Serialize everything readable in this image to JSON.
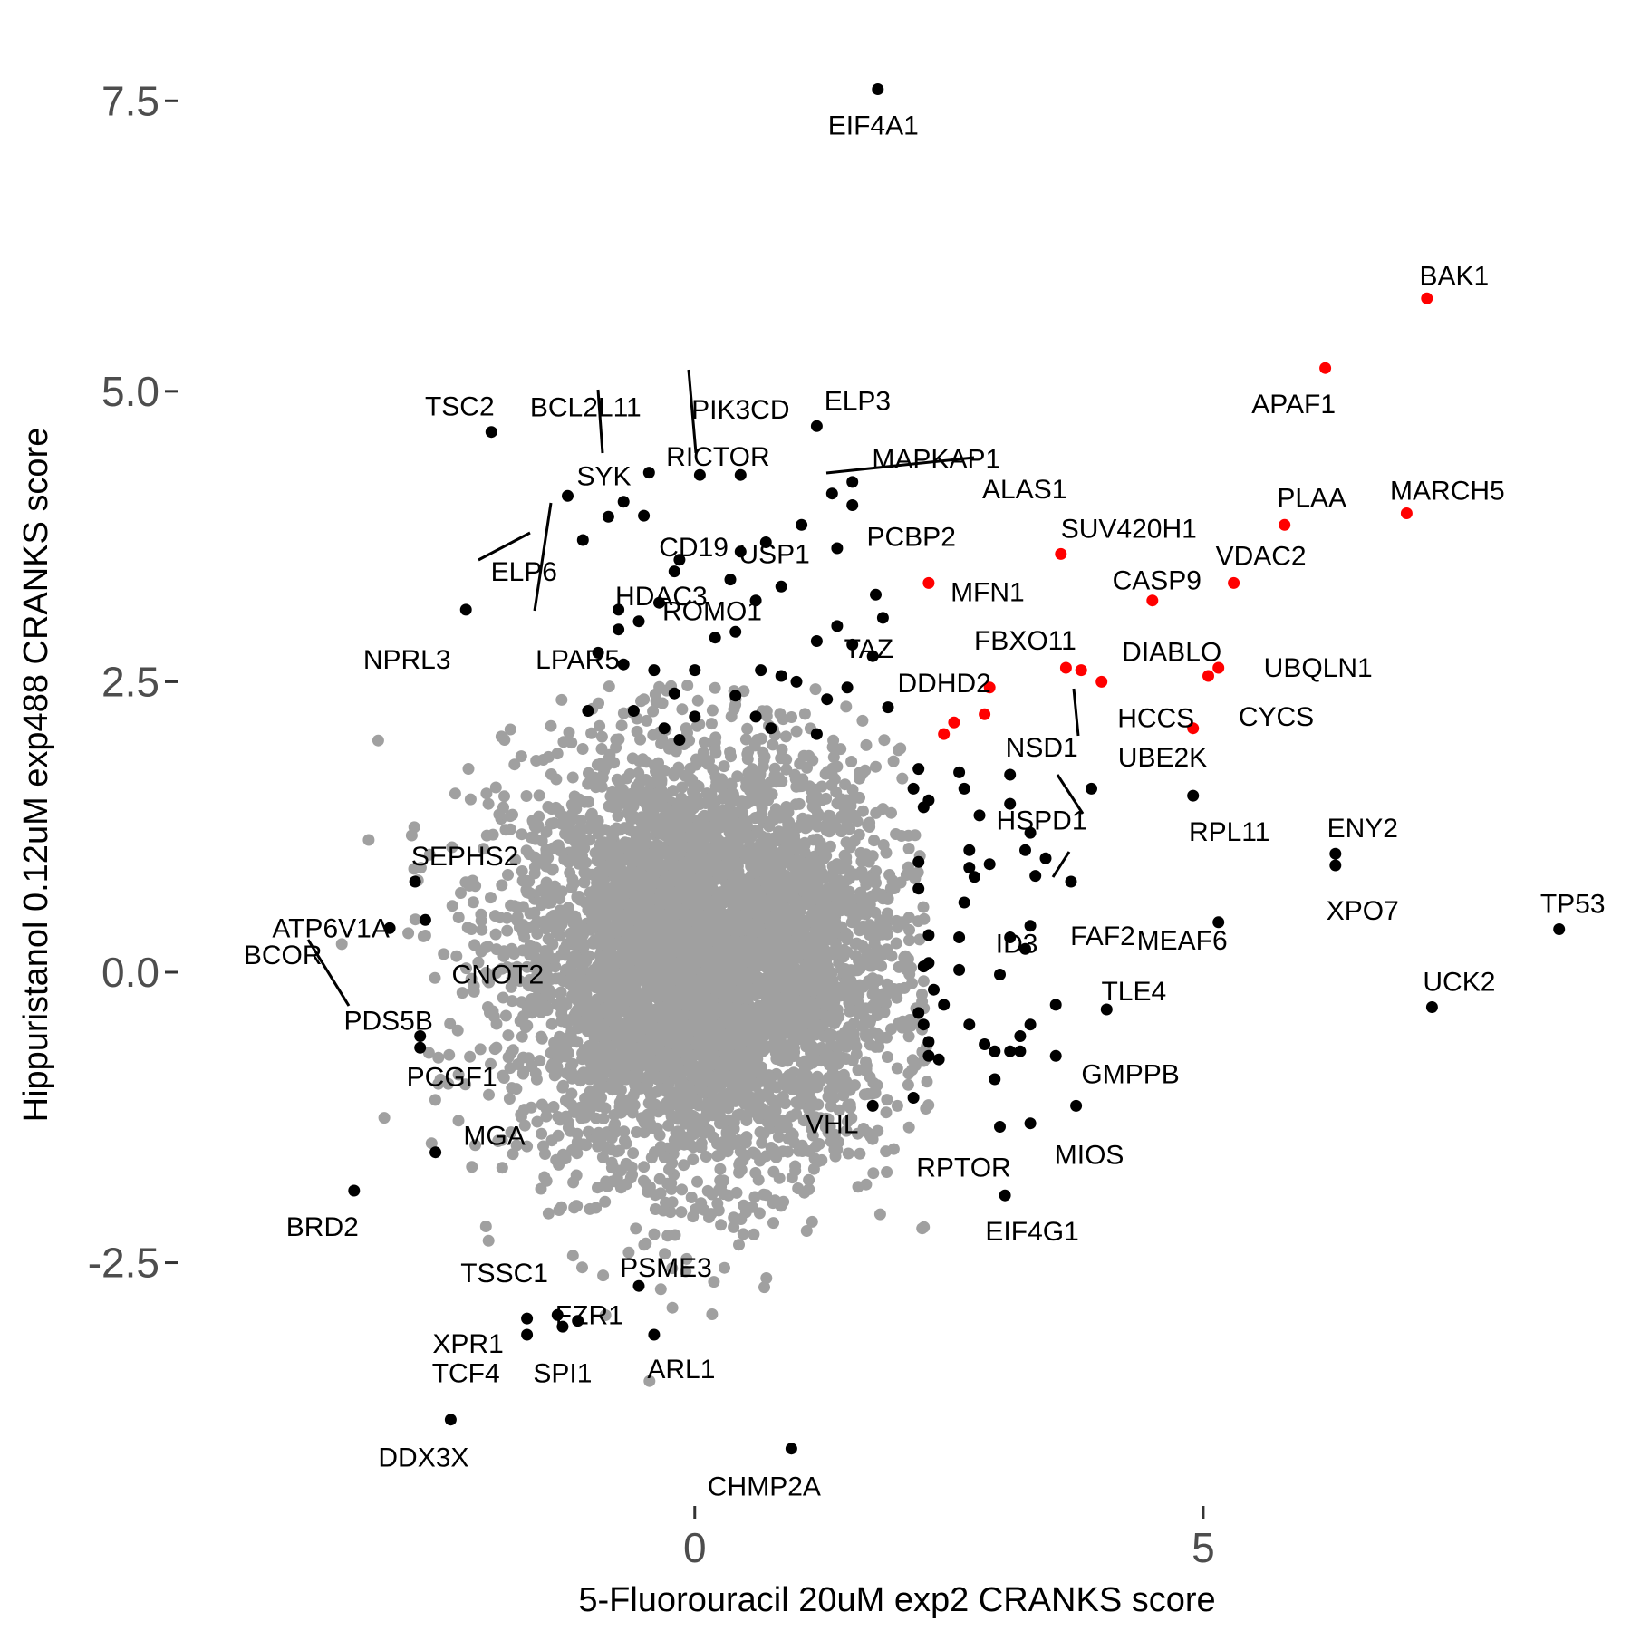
{
  "chart_data": {
    "type": "scatter",
    "title": "",
    "xlabel": "5-Fluorouracil 20uM exp2 CRANKS score",
    "ylabel": "Hippuristanol 0.12uM exp488 CRANKS score",
    "xlim": [
      -5.05,
      8.85
    ],
    "ylim": [
      -4.5,
      7.9
    ],
    "x_ticks": [
      0,
      5
    ],
    "x_tick_labels": [
      "0",
      "5"
    ],
    "y_ticks": [
      -2.5,
      0,
      2.5,
      5,
      7.5
    ],
    "y_tick_labels": [
      "-2.5",
      "0.0",
      "2.5",
      "5.0",
      "7.5"
    ],
    "grid": false,
    "legend": "none",
    "colors": {
      "background": "#ffffff",
      "hit": "#000000",
      "highlight": "#ff0000",
      "background_genes": "#a0a0a0"
    },
    "background_cloud": {
      "color": "#a0a0a0",
      "x_mean": 0.1,
      "y_mean": 0.1,
      "x_sd": 0.95,
      "y_sd": 0.9
    },
    "highlighted": [
      {
        "label": "BAK1",
        "x": 7.2,
        "y": 5.8
      },
      {
        "label": "APAF1",
        "x": 6.2,
        "y": 5.2
      },
      {
        "label": "MARCH5",
        "x": 7.0,
        "y": 3.95
      },
      {
        "label": "PLAA",
        "x": 5.8,
        "y": 3.85
      },
      {
        "label": "VDAC2",
        "x": 5.3,
        "y": 3.35
      },
      {
        "label": "CASP9",
        "x": 4.5,
        "y": 3.2
      },
      {
        "label": "SUV420H1",
        "x": 3.6,
        "y": 3.6
      },
      {
        "label": "MFN1",
        "x": 2.3,
        "y": 3.35
      },
      {
        "label": "DIABLO",
        "x": 3.8,
        "y": 2.6
      },
      {
        "label": "FBXO11",
        "x": 3.65,
        "y": 2.62
      },
      {
        "label": "HCCS",
        "x": 4.0,
        "y": 2.5
      },
      {
        "label": "UBQLN1",
        "x": 5.15,
        "y": 2.62
      },
      {
        "label": "CYCS",
        "x": 5.05,
        "y": 2.55
      },
      {
        "label": "",
        "x": 4.9,
        "y": 2.1
      },
      {
        "label": "DDHD2",
        "x": 2.9,
        "y": 2.45
      },
      {
        "label": "",
        "x": 2.85,
        "y": 2.22
      },
      {
        "label": "",
        "x": 2.55,
        "y": 2.15
      },
      {
        "label": "",
        "x": 2.45,
        "y": 2.05
      }
    ],
    "hits": [
      {
        "label": "EIF4A1",
        "x": 1.8,
        "y": 7.6
      },
      {
        "label": "TSC2",
        "x": -2.0,
        "y": 4.65
      },
      {
        "label": "ELP3",
        "x": 1.2,
        "y": 4.7
      },
      {
        "label": "BCL2L11",
        "x": -0.45,
        "y": 4.3
      },
      {
        "label": "PIK3CD",
        "x": 0.45,
        "y": 4.28
      },
      {
        "label": "RICTOR",
        "x": 0.05,
        "y": 4.28
      },
      {
        "label": "ALAS1",
        "x": 1.55,
        "y": 4.22
      },
      {
        "label": "MAPKAP1",
        "x": 1.35,
        "y": 4.12
      },
      {
        "label": "SYK",
        "x": -1.25,
        "y": 4.1
      },
      {
        "label": "PCBP2",
        "x": 1.55,
        "y": 4.02
      },
      {
        "label": "",
        "x": -0.7,
        "y": 4.05
      },
      {
        "label": "CD19",
        "x": -0.5,
        "y": 3.93
      },
      {
        "label": "",
        "x": -0.85,
        "y": 3.92
      },
      {
        "label": "USP1",
        "x": 1.05,
        "y": 3.85
      },
      {
        "label": "ELP6",
        "x": -1.1,
        "y": 3.72
      },
      {
        "label": "",
        "x": 0.7,
        "y": 3.7
      },
      {
        "label": "",
        "x": 1.4,
        "y": 3.65
      },
      {
        "label": "",
        "x": 0.45,
        "y": 3.62
      },
      {
        "label": "HDAC3",
        "x": -0.15,
        "y": 3.55
      },
      {
        "label": "",
        "x": -0.2,
        "y": 3.45
      },
      {
        "label": "ROMO1",
        "x": 0.35,
        "y": 3.38
      },
      {
        "label": "",
        "x": 0.85,
        "y": 3.32
      },
      {
        "label": "",
        "x": 1.78,
        "y": 3.25
      },
      {
        "label": "",
        "x": 0.6,
        "y": 3.2
      },
      {
        "label": "",
        "x": -0.35,
        "y": 3.18
      },
      {
        "label": "NPRL3",
        "x": -2.25,
        "y": 3.12
      },
      {
        "label": "LPAR5",
        "x": -0.75,
        "y": 3.12
      },
      {
        "label": "",
        "x": 1.85,
        "y": 3.05
      },
      {
        "label": "",
        "x": -0.55,
        "y": 3.02
      },
      {
        "label": "",
        "x": -0.75,
        "y": 2.95
      },
      {
        "label": "TAZ",
        "x": 1.4,
        "y": 2.98
      },
      {
        "label": "",
        "x": 0.4,
        "y": 2.93
      },
      {
        "label": "",
        "x": 0.2,
        "y": 2.88
      },
      {
        "label": "",
        "x": 1.2,
        "y": 2.85
      },
      {
        "label": "",
        "x": 1.55,
        "y": 2.82
      },
      {
        "label": "",
        "x": -0.95,
        "y": 2.75
      },
      {
        "label": "",
        "x": 1.75,
        "y": 2.72
      },
      {
        "label": "",
        "x": -0.7,
        "y": 2.65
      },
      {
        "label": "",
        "x": -0.4,
        "y": 2.6
      },
      {
        "label": "",
        "x": 0.0,
        "y": 2.6
      },
      {
        "label": "",
        "x": 0.65,
        "y": 2.6
      },
      {
        "label": "",
        "x": 0.85,
        "y": 2.55
      },
      {
        "label": "",
        "x": 1.0,
        "y": 2.5
      },
      {
        "label": "",
        "x": 1.5,
        "y": 2.45
      },
      {
        "label": "",
        "x": -0.2,
        "y": 2.4
      },
      {
        "label": "",
        "x": 0.4,
        "y": 2.38
      },
      {
        "label": "",
        "x": 1.3,
        "y": 2.35
      },
      {
        "label": "",
        "x": -1.05,
        "y": 2.25
      },
      {
        "label": "",
        "x": -0.6,
        "y": 2.25
      },
      {
        "label": "",
        "x": 0.0,
        "y": 2.2
      },
      {
        "label": "",
        "x": 0.6,
        "y": 2.2
      },
      {
        "label": "",
        "x": 1.9,
        "y": 2.28
      },
      {
        "label": "",
        "x": -0.3,
        "y": 2.1
      },
      {
        "label": "",
        "x": 0.75,
        "y": 2.1
      },
      {
        "label": "",
        "x": 1.2,
        "y": 2.05
      },
      {
        "label": "",
        "x": -0.15,
        "y": 2.0
      },
      {
        "label": "NSD1",
        "x": 3.1,
        "y": 1.7
      },
      {
        "label": "",
        "x": 2.2,
        "y": 1.75
      },
      {
        "label": "",
        "x": 2.6,
        "y": 1.72
      },
      {
        "label": "",
        "x": 2.15,
        "y": 1.58
      },
      {
        "label": "",
        "x": 2.65,
        "y": 1.58
      },
      {
        "label": "HSPD1",
        "x": 3.9,
        "y": 1.58
      },
      {
        "label": "RPL11",
        "x": 4.9,
        "y": 1.52
      },
      {
        "label": "",
        "x": 2.3,
        "y": 1.48
      },
      {
        "label": "",
        "x": 3.1,
        "y": 1.45
      },
      {
        "label": "",
        "x": 2.25,
        "y": 1.42
      },
      {
        "label": "",
        "x": 2.8,
        "y": 1.35
      },
      {
        "label": "",
        "x": 3.3,
        "y": 1.2
      },
      {
        "label": "ENY2",
        "x": 6.3,
        "y": 1.02
      },
      {
        "label": "XPO7",
        "x": 6.3,
        "y": 0.92
      },
      {
        "label": "",
        "x": 3.25,
        "y": 1.05
      },
      {
        "label": "",
        "x": 3.45,
        "y": 0.98
      },
      {
        "label": "",
        "x": 2.7,
        "y": 1.05
      },
      {
        "label": "",
        "x": 2.2,
        "y": 0.95
      },
      {
        "label": "",
        "x": 2.9,
        "y": 0.93
      },
      {
        "label": "",
        "x": 2.7,
        "y": 0.9
      },
      {
        "label": "",
        "x": 2.75,
        "y": 0.82
      },
      {
        "label": "",
        "x": 3.35,
        "y": 0.83
      },
      {
        "label": "FAF2",
        "x": 3.7,
        "y": 0.78
      },
      {
        "label": "SEPHS2",
        "x": -2.75,
        "y": 0.78
      },
      {
        "label": "",
        "x": 2.2,
        "y": 0.72
      },
      {
        "label": "",
        "x": 2.65,
        "y": 0.6
      },
      {
        "label": "MEAF6",
        "x": 5.15,
        "y": 0.43
      },
      {
        "label": "CNOT2",
        "x": -2.65,
        "y": 0.45
      },
      {
        "label": "ID3",
        "x": 3.3,
        "y": 0.4
      },
      {
        "label": "ATP6V1A",
        "x": -3.0,
        "y": 0.38
      },
      {
        "label": "TP53",
        "x": 8.5,
        "y": 0.37
      },
      {
        "label": "",
        "x": 2.3,
        "y": 0.32
      },
      {
        "label": "",
        "x": 2.6,
        "y": 0.3
      },
      {
        "label": "",
        "x": 3.1,
        "y": 0.3
      },
      {
        "label": "",
        "x": 3.25,
        "y": 0.2
      },
      {
        "label": "",
        "x": 2.3,
        "y": 0.08
      },
      {
        "label": "",
        "x": 2.25,
        "y": 0.05
      },
      {
        "label": "",
        "x": 2.6,
        "y": 0.02
      },
      {
        "label": "",
        "x": 3.0,
        "y": -0.02
      },
      {
        "label": "",
        "x": 2.35,
        "y": -0.15
      },
      {
        "label": "UCK2",
        "x": 7.25,
        "y": -0.3
      },
      {
        "label": "TLE4",
        "x": 4.05,
        "y": -0.32
      },
      {
        "label": "",
        "x": 3.55,
        "y": -0.28
      },
      {
        "label": "",
        "x": 2.45,
        "y": -0.28
      },
      {
        "label": "",
        "x": 2.2,
        "y": -0.35
      },
      {
        "label": "",
        "x": 2.7,
        "y": -0.45
      },
      {
        "label": "",
        "x": 3.3,
        "y": -0.45
      },
      {
        "label": "",
        "x": 2.25,
        "y": -0.45
      },
      {
        "label": "PCGF1",
        "x": -2.7,
        "y": -0.55
      },
      {
        "label": "PDS5B",
        "x": -2.7,
        "y": -0.65
      },
      {
        "label": "",
        "x": 3.2,
        "y": -0.55
      },
      {
        "label": "",
        "x": 2.3,
        "y": -0.6
      },
      {
        "label": "",
        "x": 2.85,
        "y": -0.62
      },
      {
        "label": "",
        "x": 2.95,
        "y": -0.68
      },
      {
        "label": "",
        "x": 3.1,
        "y": -0.68
      },
      {
        "label": "",
        "x": 3.2,
        "y": -0.68
      },
      {
        "label": "",
        "x": 2.3,
        "y": -0.72
      },
      {
        "label": "",
        "x": 3.55,
        "y": -0.72
      },
      {
        "label": "",
        "x": 2.4,
        "y": -0.75
      },
      {
        "label": "",
        "x": 2.95,
        "y": -0.92
      },
      {
        "label": "",
        "x": 2.15,
        "y": -1.08
      },
      {
        "label": "GMPPB",
        "x": 3.75,
        "y": -1.15
      },
      {
        "label": "VHL",
        "x": 1.75,
        "y": -1.15
      },
      {
        "label": "MIOS",
        "x": 3.3,
        "y": -1.3
      },
      {
        "label": "RPTOR",
        "x": 3.0,
        "y": -1.33
      },
      {
        "label": "MGA",
        "x": -2.55,
        "y": -1.55
      },
      {
        "label": "BRD2",
        "x": -3.35,
        "y": -1.88
      },
      {
        "label": "EIF4G1",
        "x": 3.05,
        "y": -1.92
      },
      {
        "label": "PSME3",
        "x": -0.55,
        "y": -2.7
      },
      {
        "label": "FZR1",
        "x": -1.35,
        "y": -2.95
      },
      {
        "label": "",
        "x": -1.15,
        "y": -3.0
      },
      {
        "label": "TSSC1",
        "x": -1.65,
        "y": -2.98
      },
      {
        "label": "",
        "x": -1.3,
        "y": -3.05
      },
      {
        "label": "XPR1",
        "x": -1.65,
        "y": -3.12
      },
      {
        "label": "ARL1",
        "x": -0.4,
        "y": -3.12
      },
      {
        "label": "DDX3X",
        "x": -2.4,
        "y": -3.85
      },
      {
        "label": "CHMP2A",
        "x": 0.95,
        "y": -4.1
      }
    ],
    "annotations": [
      "BCOR",
      "TCF4",
      "SPI1",
      "UBE2K"
    ]
  }
}
